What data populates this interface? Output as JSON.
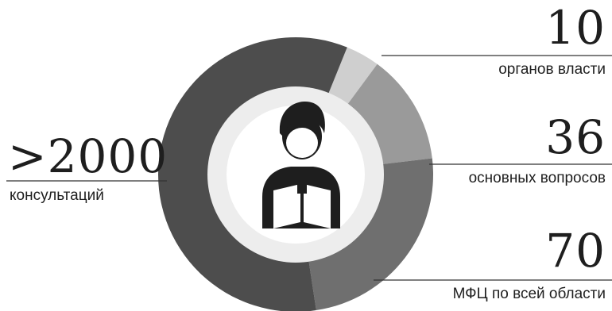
{
  "colors": {
    "dark": "#4d4d4d",
    "mid": "#6f6f6f",
    "light": "#9a9a9a",
    "pale": "#cfcfcf",
    "inner_ring": "#ededed",
    "icon": "#1e1e1e",
    "line": "#333333"
  },
  "icon": "person-reading-icon",
  "chart_data": {
    "type": "pie",
    "style": "donut",
    "slices": [
      {
        "label": "консультаций",
        "share": 0.585,
        "color": "#4d4d4d"
      },
      {
        "label": "органов власти",
        "share": 0.04,
        "color": "#cfcfcf"
      },
      {
        "label": "основных вопросов",
        "share": 0.13,
        "color": "#9a9a9a"
      },
      {
        "label": "МФЦ по всей области",
        "share": 0.245,
        "color": "#6f6f6f"
      }
    ]
  },
  "stats": {
    "consultations": {
      "value": ">2000",
      "label": "консультаций"
    },
    "authorities": {
      "value": "10",
      "label": "органов власти"
    },
    "questions": {
      "value": "36",
      "label": "основных вопросов"
    },
    "mfc": {
      "value": "70",
      "label": "МФЦ по всей области"
    }
  }
}
